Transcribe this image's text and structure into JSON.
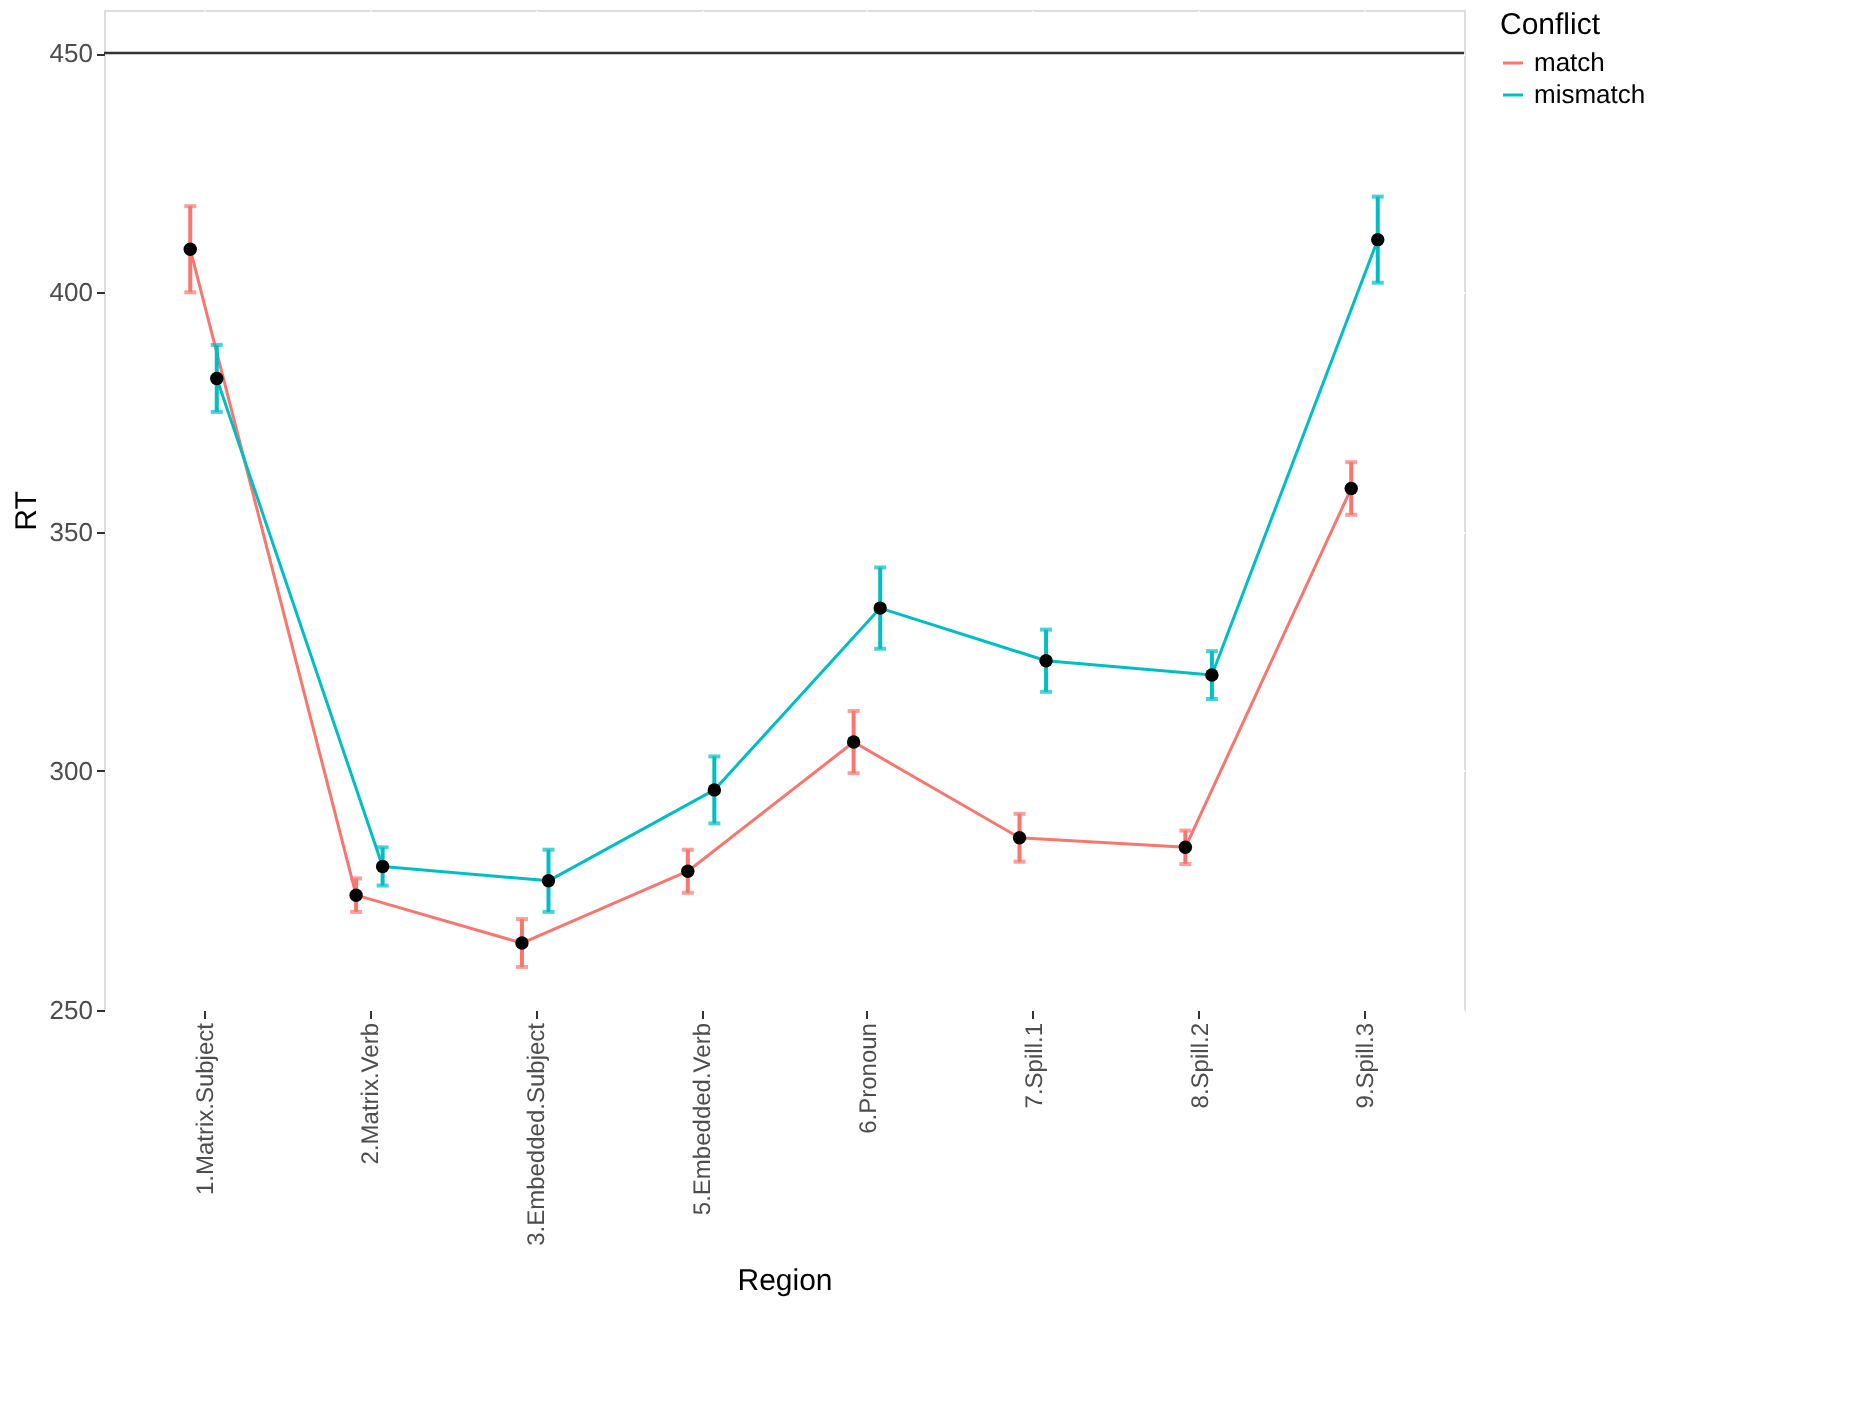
{
  "chart_data": {
    "type": "line",
    "xlabel": "Region",
    "ylabel": "RT",
    "legend_title": "Conflict",
    "categories": [
      "1.Matrix.Subject",
      "2.Matrix.Verb",
      "3.Embedded.Subject",
      "5.Embedded.Verb",
      "6.Pronoun",
      "7.Spill.1",
      "8.Spill.2",
      "9.Spill.3"
    ],
    "series": [
      {
        "name": "match",
        "color": "#f8766d",
        "values": [
          409,
          274,
          264,
          279,
          306,
          286,
          284,
          359
        ],
        "errors": [
          9,
          3.5,
          5,
          4.5,
          6.5,
          5,
          3.5,
          5.5
        ]
      },
      {
        "name": "mismatch",
        "color": "#00bfc4",
        "values": [
          382,
          280,
          277,
          296,
          334,
          323,
          320,
          411
        ],
        "errors": [
          7,
          4,
          6.5,
          7,
          8.5,
          6.5,
          5,
          9
        ]
      }
    ],
    "ylim": [
      250,
      459
    ],
    "yticks": [
      250,
      300,
      350,
      400,
      450
    ],
    "ref_lines": [
      {
        "axis": "y",
        "value": 450,
        "color": "#333333"
      }
    ],
    "grid": true,
    "legend": "right",
    "marker": "circle",
    "line_style": "solid"
  }
}
